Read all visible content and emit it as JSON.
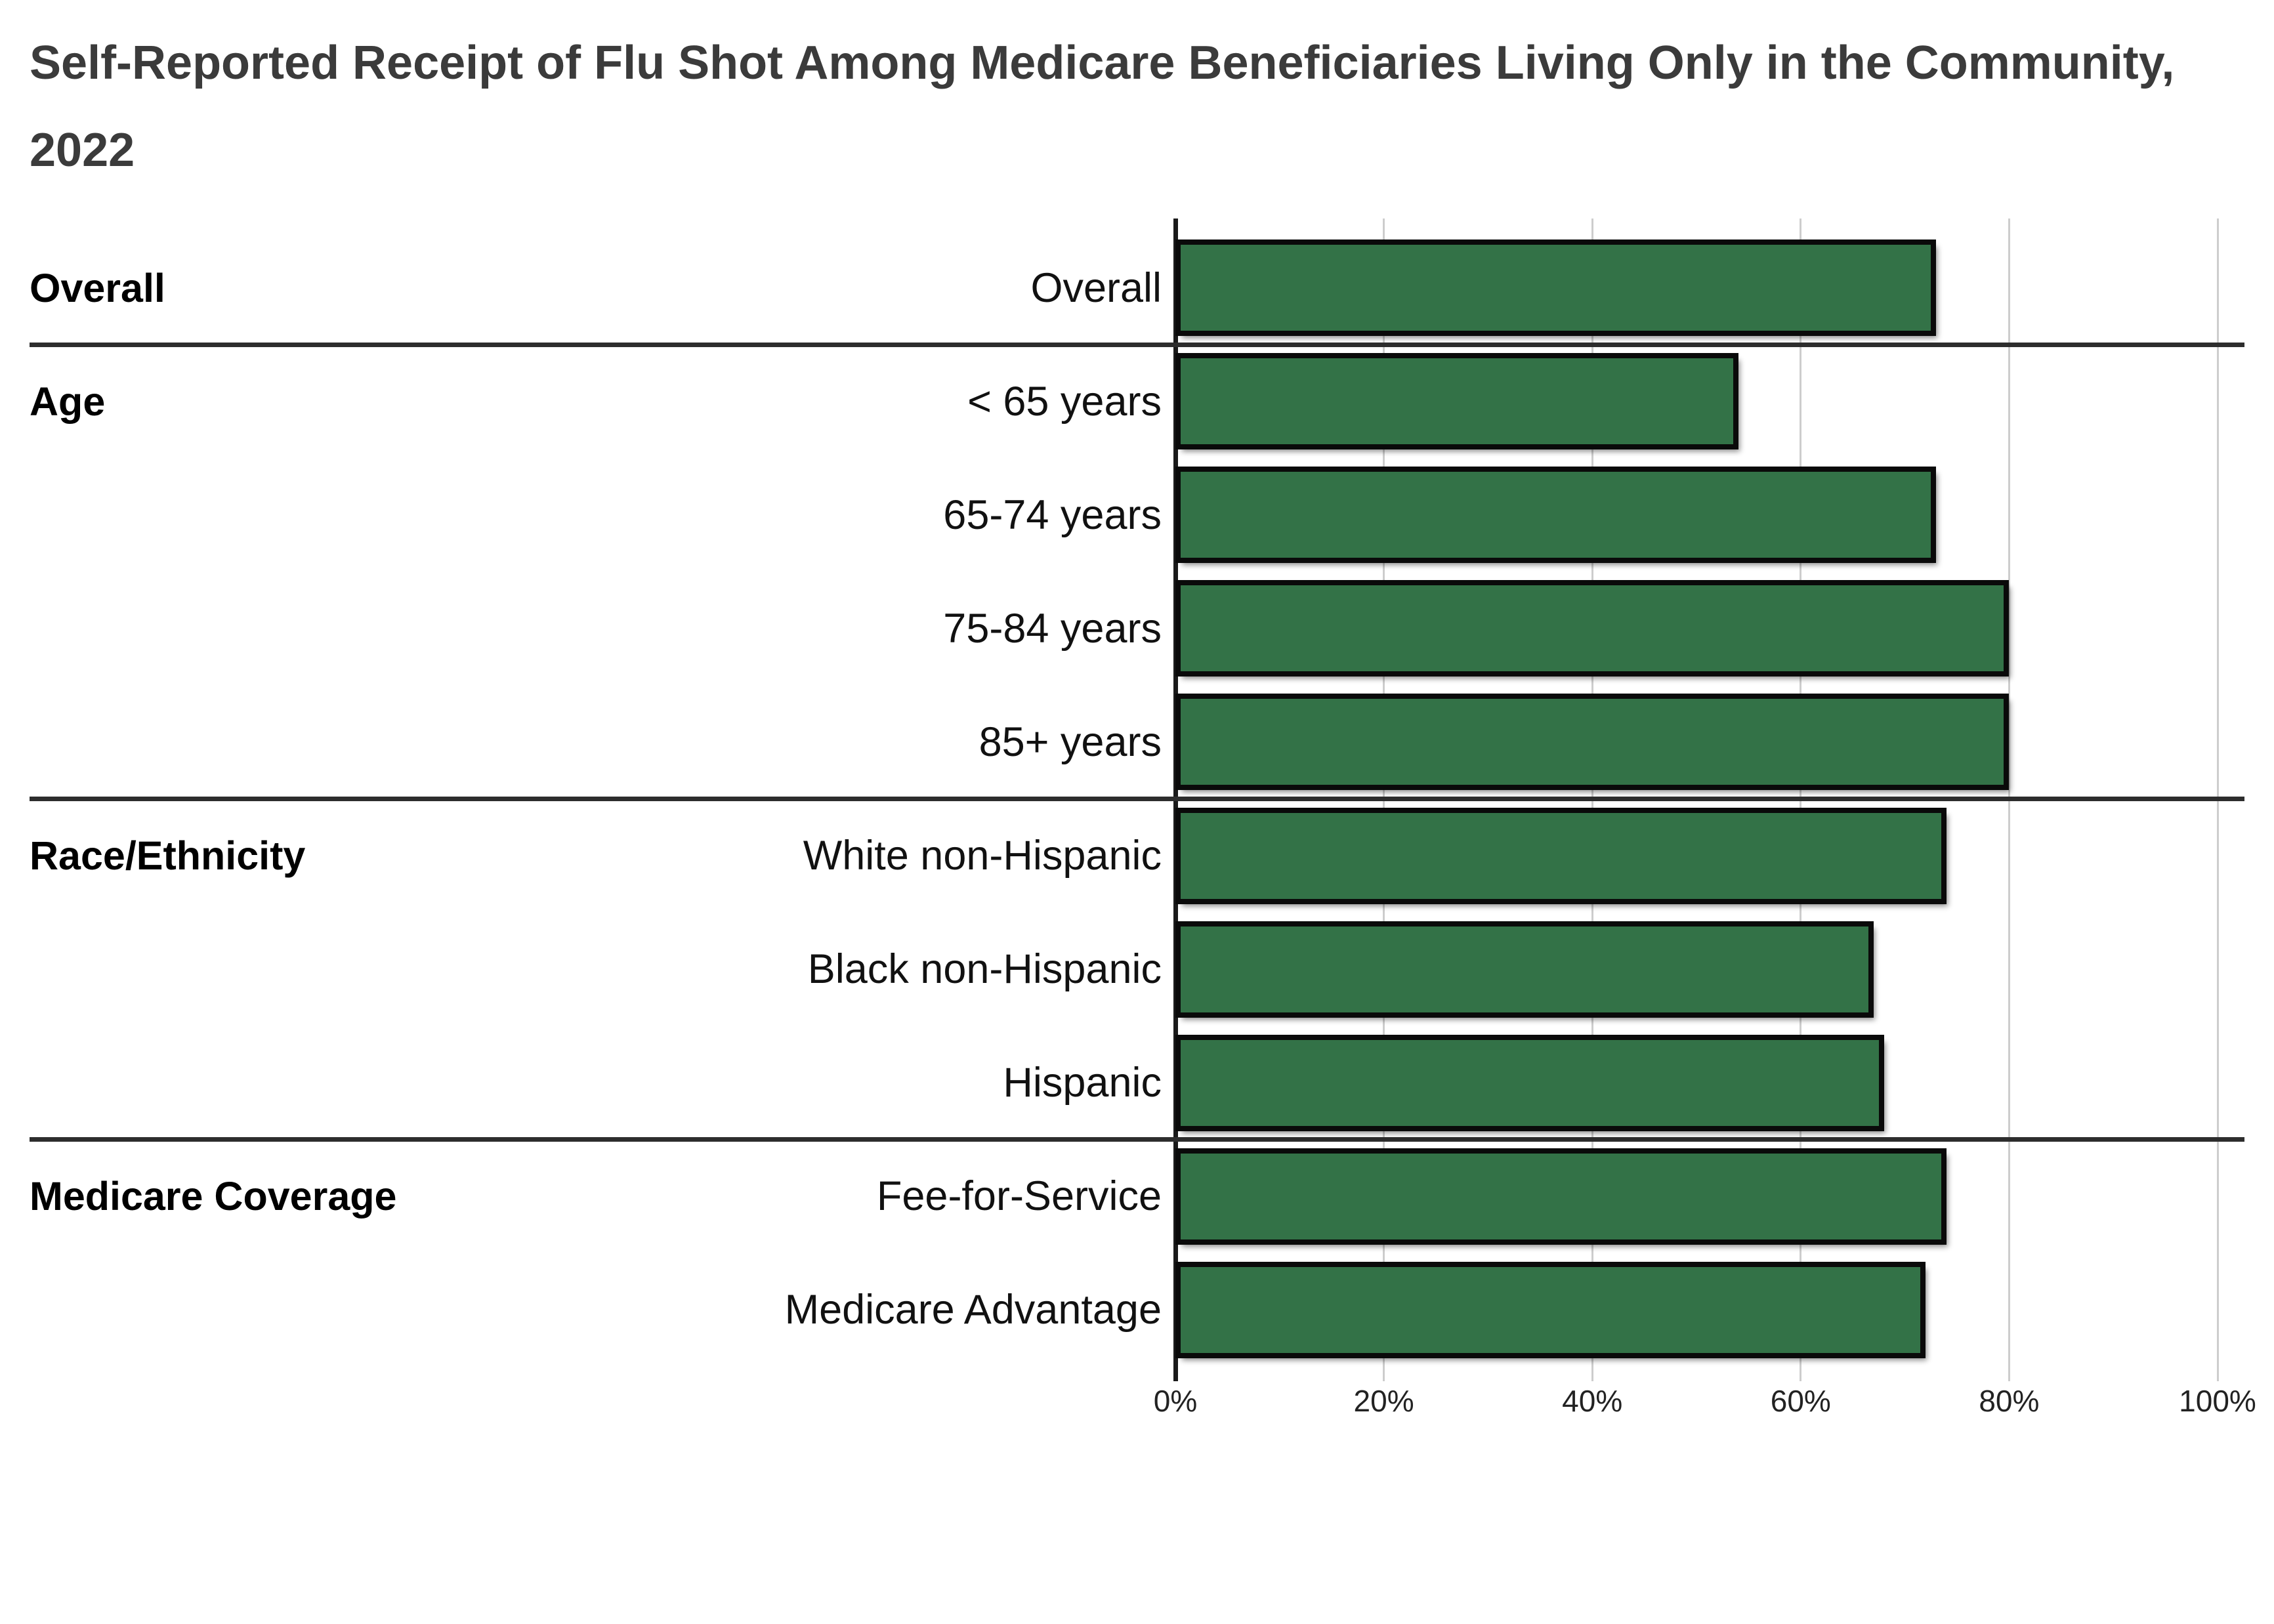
{
  "title": "Self-Reported Receipt of Flu Shot Among Medicare Beneficiaries Living Only in the Community, 2022",
  "colors": {
    "bar_fill": "#337247",
    "bar_border": "#0a0a0a",
    "gridline": "#cdcdcd",
    "axis_line": "#1a1a1a",
    "section_divider": "#2d2d2d",
    "title_text": "#3b3b3b"
  },
  "chart_data": {
    "type": "bar",
    "orientation": "horizontal",
    "title": "Self-Reported Receipt of Flu Shot Among Medicare Beneficiaries Living Only in the Community, 2022",
    "xlabel": "",
    "ylabel": "",
    "unit": "percent",
    "xlim": [
      0,
      100
    ],
    "grid": true,
    "legend": "none",
    "x_ticks": [
      {
        "value": 0,
        "label": "0%"
      },
      {
        "value": 20,
        "label": "20%"
      },
      {
        "value": 40,
        "label": "40%"
      },
      {
        "value": 60,
        "label": "60%"
      },
      {
        "value": 80,
        "label": "80%"
      },
      {
        "value": 100,
        "label": "100%"
      }
    ],
    "groups": [
      {
        "label": "Overall",
        "rows": [
          {
            "label": "Overall",
            "value": 73
          }
        ]
      },
      {
        "label": "Age",
        "rows": [
          {
            "label": "< 65 years",
            "value": 54
          },
          {
            "label": "65-74 years",
            "value": 73
          },
          {
            "label": "75-84 years",
            "value": 80
          },
          {
            "label": "85+ years",
            "value": 80
          }
        ]
      },
      {
        "label": "Race/Ethnicity",
        "rows": [
          {
            "label": "White non-Hispanic",
            "value": 74
          },
          {
            "label": "Black non-Hispanic",
            "value": 67
          },
          {
            "label": "Hispanic",
            "value": 68
          }
        ]
      },
      {
        "label": "Medicare Coverage",
        "rows": [
          {
            "label": "Fee-for-Service",
            "value": 74
          },
          {
            "label": "Medicare Advantage",
            "value": 72
          }
        ]
      }
    ]
  }
}
